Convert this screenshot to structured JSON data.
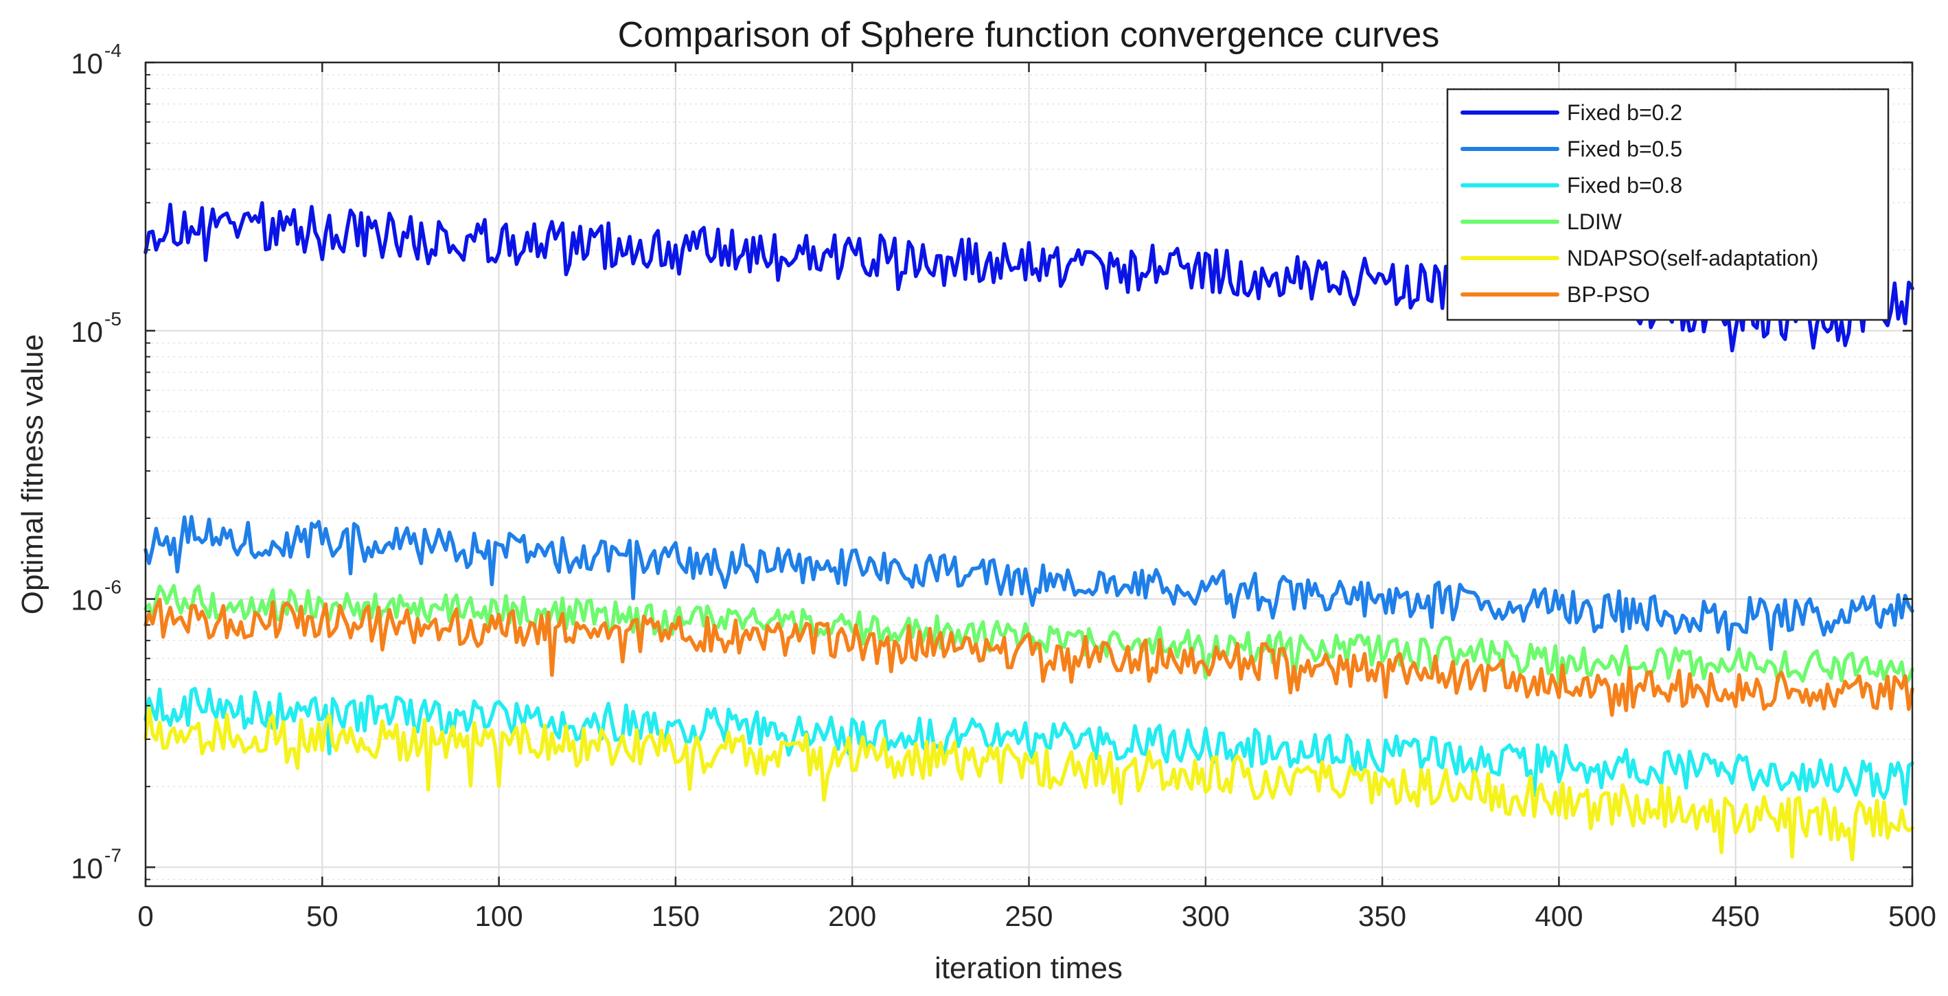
{
  "chart_data": {
    "type": "line",
    "title": "Comparison of Sphere function convergence curves",
    "xlabel": "iteration times",
    "ylabel": "Optimal fitness value",
    "xlim": [
      0,
      500
    ],
    "ylim": [
      8.5e-08,
      0.0001
    ],
    "yscale": "log",
    "grid": true,
    "legend_position": "top-right",
    "x_ticks": [
      "0",
      "50",
      "100",
      "150",
      "200",
      "250",
      "300",
      "350",
      "400",
      "450",
      "500"
    ],
    "y_ticks": [
      {
        "value": 1e-07,
        "base": "10",
        "exp": "-7"
      },
      {
        "value": 1e-06,
        "base": "10",
        "exp": "-6"
      },
      {
        "value": 1e-05,
        "base": "10",
        "exp": "-5"
      },
      {
        "value": 0.0001,
        "base": "10",
        "exp": "-4"
      }
    ],
    "x": [
      0,
      25,
      50,
      75,
      100,
      125,
      150,
      175,
      200,
      225,
      250,
      275,
      300,
      325,
      350,
      375,
      400,
      425,
      450,
      475,
      500
    ],
    "series": [
      {
        "name": "Fixed b=0.2",
        "color": "#0a14e6",
        "values": [
          2.4e-05,
          2.5e-05,
          2.4e-05,
          2.2e-05,
          2.1e-05,
          2.1e-05,
          2e-05,
          1.9e-05,
          1.9e-05,
          1.8e-05,
          1.8e-05,
          1.7e-05,
          1.7e-05,
          1.6e-05,
          1.5e-05,
          1.4e-05,
          1.35e-05,
          1.25e-05,
          1.2e-05,
          1.1e-05,
          1.3e-05
        ],
        "amp": 0.09
      },
      {
        "name": "Fixed b=0.5",
        "color": "#1f7fe8",
        "values": [
          1.75e-06,
          1.7e-06,
          1.65e-06,
          1.6e-06,
          1.5e-06,
          1.45e-06,
          1.4e-06,
          1.35e-06,
          1.3e-06,
          1.25e-06,
          1.2e-06,
          1.15e-06,
          1.1e-06,
          1.05e-06,
          1e-06,
          9.7e-07,
          9.3e-07,
          9e-07,
          8.8e-07,
          8.6e-07,
          9.5e-07
        ],
        "amp": 0.07
      },
      {
        "name": "Fixed b=0.8",
        "color": "#22ecf0",
        "values": [
          4e-07,
          3.9e-07,
          3.8e-07,
          3.7e-07,
          3.6e-07,
          3.5e-07,
          3.4e-07,
          3.3e-07,
          3.2e-07,
          3.1e-07,
          3e-07,
          2.95e-07,
          2.85e-07,
          2.75e-07,
          2.65e-07,
          2.55e-07,
          2.45e-07,
          2.35e-07,
          2.25e-07,
          2.15e-07,
          2.1e-07
        ],
        "amp": 0.07
      },
      {
        "name": "LDIW",
        "color": "#6dfa6d",
        "values": [
          1e-06,
          9.7e-07,
          9.5e-07,
          9.2e-07,
          9e-07,
          8.7e-07,
          8.4e-07,
          8.1e-07,
          7.8e-07,
          7.5e-07,
          7.2e-07,
          7e-07,
          6.8e-07,
          6.6e-07,
          6.4e-07,
          6.2e-07,
          6e-07,
          5.8e-07,
          5.7e-07,
          5.6e-07,
          5.5e-07
        ],
        "amp": 0.06
      },
      {
        "name": "NDAPSO(self-adaptation)",
        "color": "#f5f21c",
        "values": [
          3.3e-07,
          3.2e-07,
          3.1e-07,
          3e-07,
          2.9e-07,
          2.85e-07,
          2.75e-07,
          2.65e-07,
          2.55e-07,
          2.5e-07,
          2.4e-07,
          2.3e-07,
          2.2e-07,
          2.1e-07,
          2e-07,
          1.9e-07,
          1.8e-07,
          1.7e-07,
          1.6e-07,
          1.5e-07,
          1.5e-07
        ],
        "amp": 0.08
      },
      {
        "name": "BP-PSO",
        "color": "#f5801a",
        "values": [
          8.5e-07,
          8.4e-07,
          8.3e-07,
          8e-07,
          7.8e-07,
          7.6e-07,
          7.4e-07,
          7.2e-07,
          6.9e-07,
          6.7e-07,
          6.4e-07,
          6.2e-07,
          6e-07,
          5.7e-07,
          5.4e-07,
          5.2e-07,
          5e-07,
          4.8e-07,
          4.6e-07,
          4.5e-07,
          4.5e-07
        ],
        "amp": 0.07
      }
    ]
  }
}
